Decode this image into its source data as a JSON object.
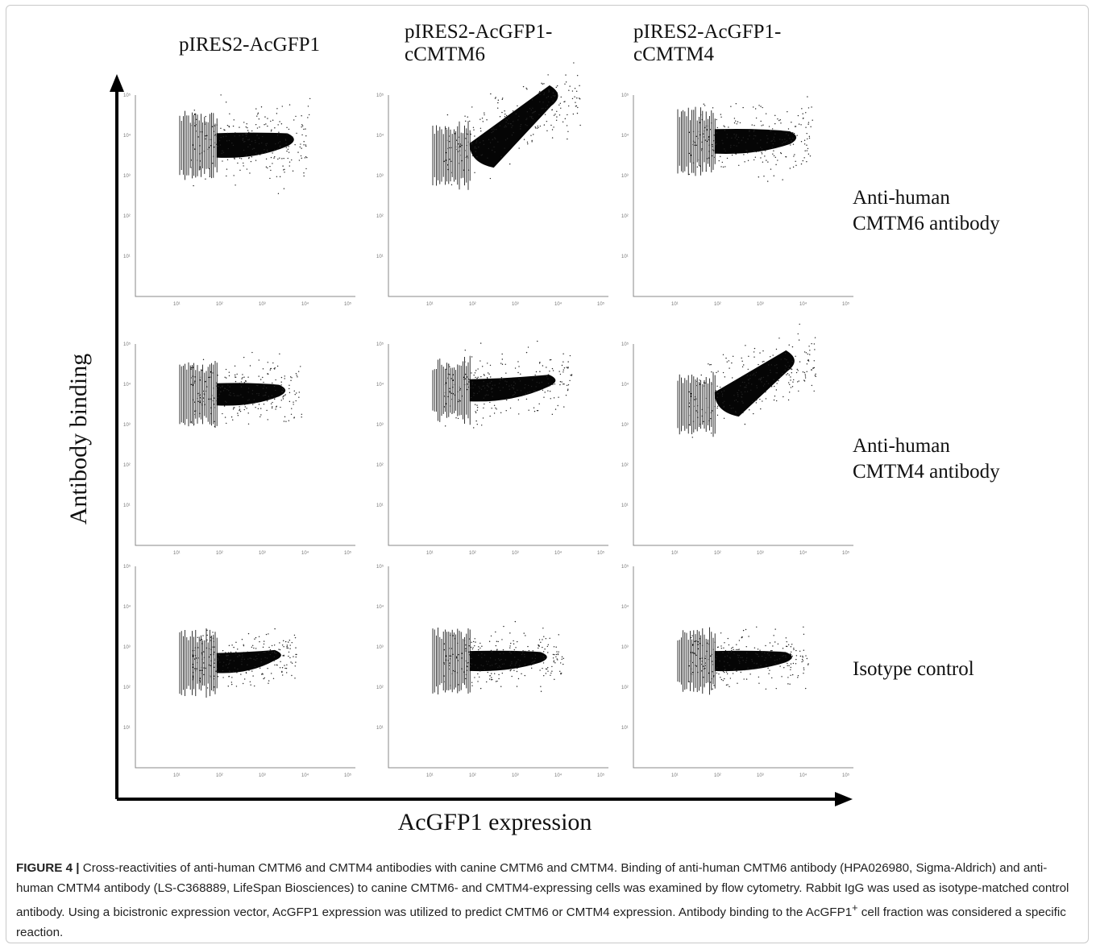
{
  "figure": {
    "column_headers": [
      "pIRES2-AcGFP1",
      "pIRES2-AcGFP1-\ncCMTM6",
      "pIRES2-AcGFP1-\ncCMTM4"
    ],
    "row_labels": [
      "Anti-human\nCMTM6 antibody",
      "Anti-human\nCMTM4 antibody",
      "Isotype control"
    ],
    "y_axis_title": "Antibody binding",
    "x_axis_title": "AcGFP1 expression",
    "tick_labels": [
      "10¹",
      "10²",
      "10³",
      "10⁴",
      "10⁵"
    ]
  },
  "chart_data": {
    "type": "scatter",
    "xlabel": "AcGFP1 expression",
    "ylabel": "Antibody binding",
    "x_scale": "log",
    "y_scale": "log",
    "xlim": [
      1,
      100000
    ],
    "ylim": [
      1,
      100000
    ],
    "columns": [
      "pIRES2-AcGFP1",
      "pIRES2-AcGFP1-cCMTM6",
      "pIRES2-AcGFP1-cCMTM4"
    ],
    "rows": [
      "Anti-human CMTM6 antibody",
      "Anti-human CMTM4 antibody",
      "Isotype control"
    ],
    "panels": [
      {
        "row": 0,
        "col": 0,
        "shape": "blob",
        "x_start": 1.0,
        "x_end": 3.9,
        "y_center": 3.75,
        "y_center_end": 3.9,
        "spread": 0.55,
        "positive_diagonal": false
      },
      {
        "row": 0,
        "col": 1,
        "shape": "diagonal",
        "x_start": 1.0,
        "x_end": 4.3,
        "y_center": 3.5,
        "y_center_end": 5.0,
        "spread": 0.55,
        "positive_diagonal": true
      },
      {
        "row": 0,
        "col": 2,
        "shape": "blob",
        "x_start": 1.0,
        "x_end": 4.0,
        "y_center": 3.85,
        "y_center_end": 3.95,
        "spread": 0.55,
        "positive_diagonal": false
      },
      {
        "row": 1,
        "col": 0,
        "shape": "blob",
        "x_start": 1.0,
        "x_end": 3.7,
        "y_center": 3.75,
        "y_center_end": 3.85,
        "spread": 0.5,
        "positive_diagonal": false
      },
      {
        "row": 1,
        "col": 1,
        "shape": "blob",
        "x_start": 1.0,
        "x_end": 4.1,
        "y_center": 3.85,
        "y_center_end": 4.1,
        "spread": 0.5,
        "positive_diagonal": false
      },
      {
        "row": 1,
        "col": 2,
        "shape": "diagonal",
        "x_start": 1.0,
        "x_end": 4.1,
        "y_center": 3.5,
        "y_center_end": 4.6,
        "spread": 0.55,
        "positive_diagonal": true
      },
      {
        "row": 2,
        "col": 0,
        "shape": "blob",
        "x_start": 1.0,
        "x_end": 3.6,
        "y_center": 2.6,
        "y_center_end": 2.8,
        "spread": 0.45,
        "positive_diagonal": false
      },
      {
        "row": 2,
        "col": 1,
        "shape": "blob",
        "x_start": 1.0,
        "x_end": 3.9,
        "y_center": 2.65,
        "y_center_end": 2.75,
        "spread": 0.45,
        "positive_diagonal": false
      },
      {
        "row": 2,
        "col": 2,
        "shape": "blob",
        "x_start": 1.0,
        "x_end": 3.9,
        "y_center": 2.65,
        "y_center_end": 2.75,
        "spread": 0.45,
        "positive_diagonal": false
      }
    ]
  },
  "caption": {
    "label": "FIGURE 4 |",
    "text_before_sup": " Cross-reactivities of anti-human CMTM6 and CMTM4 antibodies with canine CMTM6 and CMTM4. Binding of anti-human CMTM6 antibody (HPA026980, Sigma-Aldrich) and anti-human CMTM4 antibody (LS-C368889, LifeSpan Biosciences) to canine CMTM6- and CMTM4-expressing cells was examined by flow cytometry. Rabbit IgG was used as isotype-matched control antibody. Using a bicistronic expression vector, AcGFP1 expression was utilized to predict CMTM6 or CMTM4 expression. Antibody binding to the AcGFP1",
    "sup": "+",
    "text_after_sup": " cell fraction was considered a specific reaction."
  }
}
